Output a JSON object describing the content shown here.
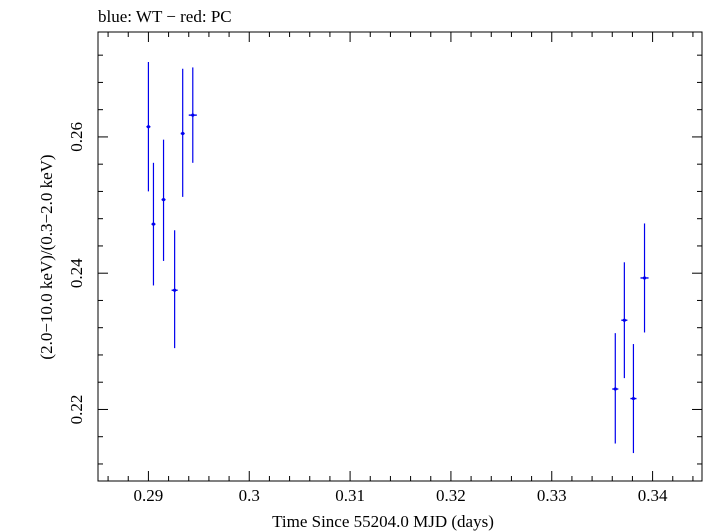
{
  "chart_data": {
    "type": "scatter",
    "title": "blue: WT − red: PC",
    "xlabel": "Time Since 55204.0 MJD (days)",
    "ylabel": "(2.0−10.0 keV)/(0.3−2.0 keV)",
    "xlim": [
      0.285,
      0.3449
    ],
    "ylim": [
      0.2095,
      0.2754
    ],
    "x_ticks": [
      {
        "value": 0.29,
        "label": "0.29"
      },
      {
        "value": 0.3,
        "label": "0.3"
      },
      {
        "value": 0.31,
        "label": "0.31"
      },
      {
        "value": 0.32,
        "label": "0.32"
      },
      {
        "value": 0.33,
        "label": "0.33"
      },
      {
        "value": 0.34,
        "label": "0.34"
      }
    ],
    "y_ticks": [
      {
        "value": 0.22,
        "label": "0.22"
      },
      {
        "value": 0.24,
        "label": "0.24"
      },
      {
        "value": 0.26,
        "label": "0.26"
      }
    ],
    "x_minor_step": 0.002,
    "y_minor_step": 0.004,
    "grid": false,
    "series": [
      {
        "color": "#0000ee",
        "points": [
          {
            "x": 0.29,
            "xerr": 0.0002,
            "y": 0.2615,
            "yerr_lo": 0.0095,
            "yerr_hi": 0.0095
          },
          {
            "x": 0.2905,
            "xerr": 0.0002,
            "y": 0.2472,
            "yerr_lo": 0.009,
            "yerr_hi": 0.009
          },
          {
            "x": 0.2915,
            "xerr": 0.0002,
            "y": 0.2508,
            "yerr_lo": 0.009,
            "yerr_hi": 0.0088
          },
          {
            "x": 0.2926,
            "xerr": 0.0003,
            "y": 0.2375,
            "yerr_lo": 0.0085,
            "yerr_hi": 0.0088
          },
          {
            "x": 0.2934,
            "xerr": 0.0002,
            "y": 0.2605,
            "yerr_lo": 0.0093,
            "yerr_hi": 0.0095
          },
          {
            "x": 0.2944,
            "xerr": 0.0004,
            "y": 0.2632,
            "yerr_lo": 0.007,
            "yerr_hi": 0.007
          },
          {
            "x": 0.3363,
            "xerr": 0.0003,
            "y": 0.223,
            "yerr_lo": 0.008,
            "yerr_hi": 0.0082
          },
          {
            "x": 0.3372,
            "xerr": 0.0003,
            "y": 0.2331,
            "yerr_lo": 0.0085,
            "yerr_hi": 0.0085
          },
          {
            "x": 0.3381,
            "xerr": 0.0003,
            "y": 0.2216,
            "yerr_lo": 0.008,
            "yerr_hi": 0.008
          },
          {
            "x": 0.3392,
            "xerr": 0.0004,
            "y": 0.2393,
            "yerr_lo": 0.008,
            "yerr_hi": 0.008
          }
        ]
      }
    ]
  }
}
